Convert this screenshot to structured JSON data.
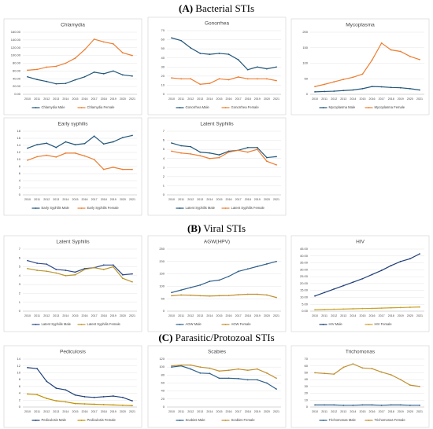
{
  "sections": [
    {
      "label": "(A)",
      "title": "Bacterial STIs"
    },
    {
      "label": "(B)",
      "title": "Viral STIs"
    },
    {
      "label": "(C)",
      "title": "Parasitic/Protozoal STIs"
    }
  ],
  "chart_data": [
    {
      "type": "line",
      "title": "Chlamydia",
      "categories": [
        "2010",
        "2011",
        "2012",
        "2013",
        "2014",
        "2015",
        "2016",
        "2017",
        "2018",
        "2019",
        "2020",
        "2021"
      ],
      "series": [
        {
          "name": "Chlamydia Male",
          "color": "#22577a",
          "values": [
            45,
            38,
            33,
            27,
            28,
            37,
            45,
            57,
            53,
            60,
            50,
            47
          ]
        },
        {
          "name": "Chlamydia Female",
          "color": "#ed7d31",
          "values": [
            62,
            64,
            70,
            72,
            80,
            93,
            115,
            142,
            135,
            130,
            107,
            100
          ]
        }
      ],
      "ylim": [
        0,
        160
      ],
      "yticks": [
        {
          "value": 0,
          "label": "0.00"
        },
        {
          "value": 20,
          "label": "20.00"
        },
        {
          "value": 40,
          "label": "40.00"
        },
        {
          "value": 60,
          "label": "60.00"
        },
        {
          "value": 80,
          "label": "80.00"
        },
        {
          "value": 100,
          "label": "100.00"
        },
        {
          "value": 120,
          "label": "120.00"
        },
        {
          "value": 140,
          "label": "140.00"
        },
        {
          "value": 160,
          "label": "160.00"
        }
      ],
      "grid": true
    },
    {
      "type": "line",
      "title": "Gonorrhea",
      "categories": [
        "2010",
        "2011",
        "2012",
        "2013",
        "2014",
        "2015",
        "2016",
        "2017",
        "2018",
        "2019",
        "2020",
        "2021"
      ],
      "series": [
        {
          "name": "Gonorrhea Male",
          "color": "#22577a",
          "values": [
            62,
            59,
            51,
            45,
            44,
            45,
            44,
            38,
            27,
            30,
            28,
            30
          ]
        },
        {
          "name": "Gonorrhea Female",
          "color": "#ed7d31",
          "values": [
            18,
            17,
            17,
            11,
            12,
            17,
            16,
            19,
            17,
            17,
            17,
            15
          ]
        }
      ],
      "ylim": [
        0,
        70
      ],
      "yticks": [
        0,
        10,
        20,
        30,
        40,
        50,
        60,
        70
      ],
      "grid": true
    },
    {
      "type": "line",
      "title": "Mycoplasma",
      "categories": [
        "2010",
        "2011",
        "2012",
        "2013",
        "2014",
        "2015",
        "2016",
        "2017",
        "2018",
        "2019",
        "2020",
        "2021"
      ],
      "series": [
        {
          "name": "Mycoplasma Male",
          "color": "#22577a",
          "values": [
            8,
            9,
            10,
            12,
            14,
            18,
            25,
            24,
            22,
            21,
            18,
            14
          ]
        },
        {
          "name": "Mycoplasma Female",
          "color": "#ed7d31",
          "values": [
            25,
            32,
            40,
            48,
            55,
            65,
            110,
            165,
            143,
            138,
            122,
            112
          ]
        }
      ],
      "ylim": [
        0,
        200
      ],
      "yticks": [
        0,
        50,
        100,
        150,
        200
      ],
      "grid": true
    },
    {
      "type": "line",
      "title": "Early syphilis",
      "categories": [
        "2010",
        "2011",
        "2012",
        "2013",
        "2014",
        "2015",
        "2016",
        "2017",
        "2018",
        "2019",
        "2020",
        "2021"
      ],
      "series": [
        {
          "name": "Early Syphilis Male",
          "color": "#22577a",
          "values": [
            13.2,
            14.2,
            14.6,
            13.4,
            15,
            14.2,
            14.5,
            16.6,
            14.4,
            15,
            16.2,
            16.8
          ]
        },
        {
          "name": "Early Syphilis Female",
          "color": "#ed7d31",
          "values": [
            9.8,
            10.8,
            11.2,
            10.7,
            11.8,
            11.8,
            11,
            10,
            7.2,
            7.8,
            7.2,
            7.2
          ]
        }
      ],
      "ylim": [
        0,
        18
      ],
      "yticks": [
        0,
        2,
        4,
        6,
        8,
        10,
        12,
        14,
        16,
        18
      ],
      "grid": true
    },
    {
      "type": "line",
      "title": "Latent Syphilis",
      "categories": [
        "2010",
        "2011",
        "2012",
        "2013",
        "2014",
        "2015",
        "2016",
        "2017",
        "2018",
        "2019",
        "2020",
        "2021"
      ],
      "series": [
        {
          "name": "Latent Syphilis Male",
          "color": "#22577a",
          "values": [
            5.7,
            5.4,
            5.3,
            4.7,
            4.6,
            4.4,
            4.8,
            4.9,
            5.2,
            5.2,
            4.1,
            4.2
          ]
        },
        {
          "name": "Latent Syphilis Female",
          "color": "#ed7d31",
          "values": [
            4.8,
            4.6,
            4.5,
            4.3,
            4.0,
            4.1,
            4.7,
            4.9,
            4.7,
            5.0,
            3.7,
            3.3
          ]
        }
      ],
      "ylim": [
        0,
        7
      ],
      "yticks": [
        0,
        1,
        2,
        3,
        4,
        5,
        6,
        7
      ],
      "grid": true
    },
    {
      "type": "line",
      "title": "Latent Syphilis",
      "categories": [
        "2010",
        "2011",
        "2012",
        "2013",
        "2014",
        "2015",
        "2016",
        "2017",
        "2018",
        "2019",
        "2020",
        "2021"
      ],
      "series": [
        {
          "name": "Latent Syphilis Male",
          "color": "#2e4a8c",
          "values": [
            5.7,
            5.4,
            5.3,
            4.7,
            4.6,
            4.4,
            4.8,
            4.9,
            5.2,
            5.2,
            4.1,
            4.2
          ]
        },
        {
          "name": "Latent Syphilis Female",
          "color": "#b8962e",
          "values": [
            4.8,
            4.6,
            4.5,
            4.3,
            4.0,
            4.1,
            4.7,
            4.9,
            4.7,
            5.0,
            3.7,
            3.3
          ]
        }
      ],
      "ylim": [
        0,
        7
      ],
      "yticks": [
        0,
        1,
        2,
        3,
        4,
        5,
        6,
        7
      ],
      "grid": true
    },
    {
      "type": "line",
      "title": "AGW(HPV)",
      "categories": [
        "2010",
        "2011",
        "2012",
        "2013",
        "2014",
        "2015",
        "2016",
        "2017",
        "2018",
        "2019",
        "2020",
        "2021"
      ],
      "series": [
        {
          "name": "AGW Male",
          "color": "#2e5f8a",
          "values": [
            75,
            85,
            95,
            105,
            120,
            125,
            140,
            160,
            170,
            180,
            190,
            200
          ]
        },
        {
          "name": "AGW Female",
          "color": "#c09030",
          "values": [
            62,
            65,
            64,
            62,
            61,
            62,
            63,
            66,
            68,
            68,
            65,
            55
          ]
        }
      ],
      "ylim": [
        0,
        250
      ],
      "yticks": [
        0,
        50,
        100,
        150,
        200,
        250
      ],
      "grid": true
    },
    {
      "type": "line",
      "title": "HIV",
      "categories": [
        "2010",
        "2011",
        "2012",
        "2013",
        "2014",
        "2015",
        "2016",
        "2017",
        "2018",
        "2019",
        "2020",
        "2021"
      ],
      "series": [
        {
          "name": "HIV Male",
          "color": "#1f3f7a",
          "values": [
            11,
            13.5,
            16,
            18.5,
            21,
            23.5,
            26.5,
            29.5,
            33,
            36,
            38,
            41.5
          ]
        },
        {
          "name": "HIV Female",
          "color": "#c9a227",
          "values": [
            1,
            1.2,
            1.4,
            1.5,
            1.7,
            1.9,
            2,
            2.2,
            2.4,
            2.6,
            2.8,
            3
          ]
        }
      ],
      "ylim": [
        0,
        45
      ],
      "yticks": [
        {
          "value": 0,
          "label": "0.00"
        },
        {
          "value": 5,
          "label": "5.00"
        },
        {
          "value": 10,
          "label": "10.00"
        },
        {
          "value": 15,
          "label": "15.00"
        },
        {
          "value": 20,
          "label": "20.00"
        },
        {
          "value": 25,
          "label": "25.00"
        },
        {
          "value": 30,
          "label": "30.00"
        },
        {
          "value": 35,
          "label": "35.00"
        },
        {
          "value": 40,
          "label": "40.00"
        },
        {
          "value": 45,
          "label": "45.00"
        }
      ],
      "grid": true
    },
    {
      "type": "line",
      "title": "Pediculosis",
      "categories": [
        "2010",
        "2011",
        "2012",
        "2013",
        "2014",
        "2015",
        "2016",
        "2017",
        "2018",
        "2019",
        "2020",
        "2021"
      ],
      "series": [
        {
          "name": "Pediculosis Male",
          "color": "#1f3f7a",
          "values": [
            11.5,
            11.2,
            7.5,
            5.5,
            5,
            3.5,
            3,
            2.8,
            3,
            3.2,
            2.8,
            1.8
          ]
        },
        {
          "name": "Pediculosis Female",
          "color": "#bf9000",
          "values": [
            3.8,
            3.6,
            2.5,
            1.8,
            1.5,
            1.0,
            0.9,
            0.8,
            0.7,
            0.6,
            0.5,
            0.4
          ]
        }
      ],
      "ylim": [
        0,
        14
      ],
      "yticks": [
        0,
        2,
        4,
        6,
        8,
        10,
        12,
        14
      ],
      "grid": true
    },
    {
      "type": "line",
      "title": "Scabies",
      "categories": [
        "2010",
        "2011",
        "2012",
        "2013",
        "2014",
        "2015",
        "2016",
        "2017",
        "2018",
        "2019",
        "2020",
        "2021"
      ],
      "series": [
        {
          "name": "Scabies Male",
          "color": "#2e5f8a",
          "values": [
            100,
            103,
            95,
            85,
            84,
            72,
            72,
            71,
            68,
            68,
            60,
            45
          ]
        },
        {
          "name": "Scabies Female",
          "color": "#c09030",
          "values": [
            103,
            105,
            105,
            100,
            97,
            90,
            92,
            95,
            92,
            95,
            85,
            72
          ]
        }
      ],
      "ylim": [
        0,
        120
      ],
      "yticks": [
        0,
        20,
        40,
        60,
        80,
        100,
        120
      ],
      "grid": true
    },
    {
      "type": "line",
      "title": "Trichomonas",
      "categories": [
        "2010",
        "2011",
        "2012",
        "2013",
        "2014",
        "2015",
        "2016",
        "2017",
        "2018",
        "2019",
        "2020",
        "2021"
      ],
      "series": [
        {
          "name": "Trichomonas Male",
          "color": "#2e5f8a",
          "values": [
            3,
            3,
            3,
            2.5,
            2.5,
            3,
            3,
            2.5,
            3,
            3,
            2.5,
            2.5
          ]
        },
        {
          "name": "Trichomonas Female",
          "color": "#c09030",
          "values": [
            50,
            49,
            48,
            58,
            63,
            57,
            56,
            51,
            47,
            40,
            32,
            30
          ]
        }
      ],
      "ylim": [
        0,
        70
      ],
      "yticks": [
        0,
        10,
        20,
        30,
        40,
        50,
        60,
        70
      ],
      "grid": true
    }
  ]
}
